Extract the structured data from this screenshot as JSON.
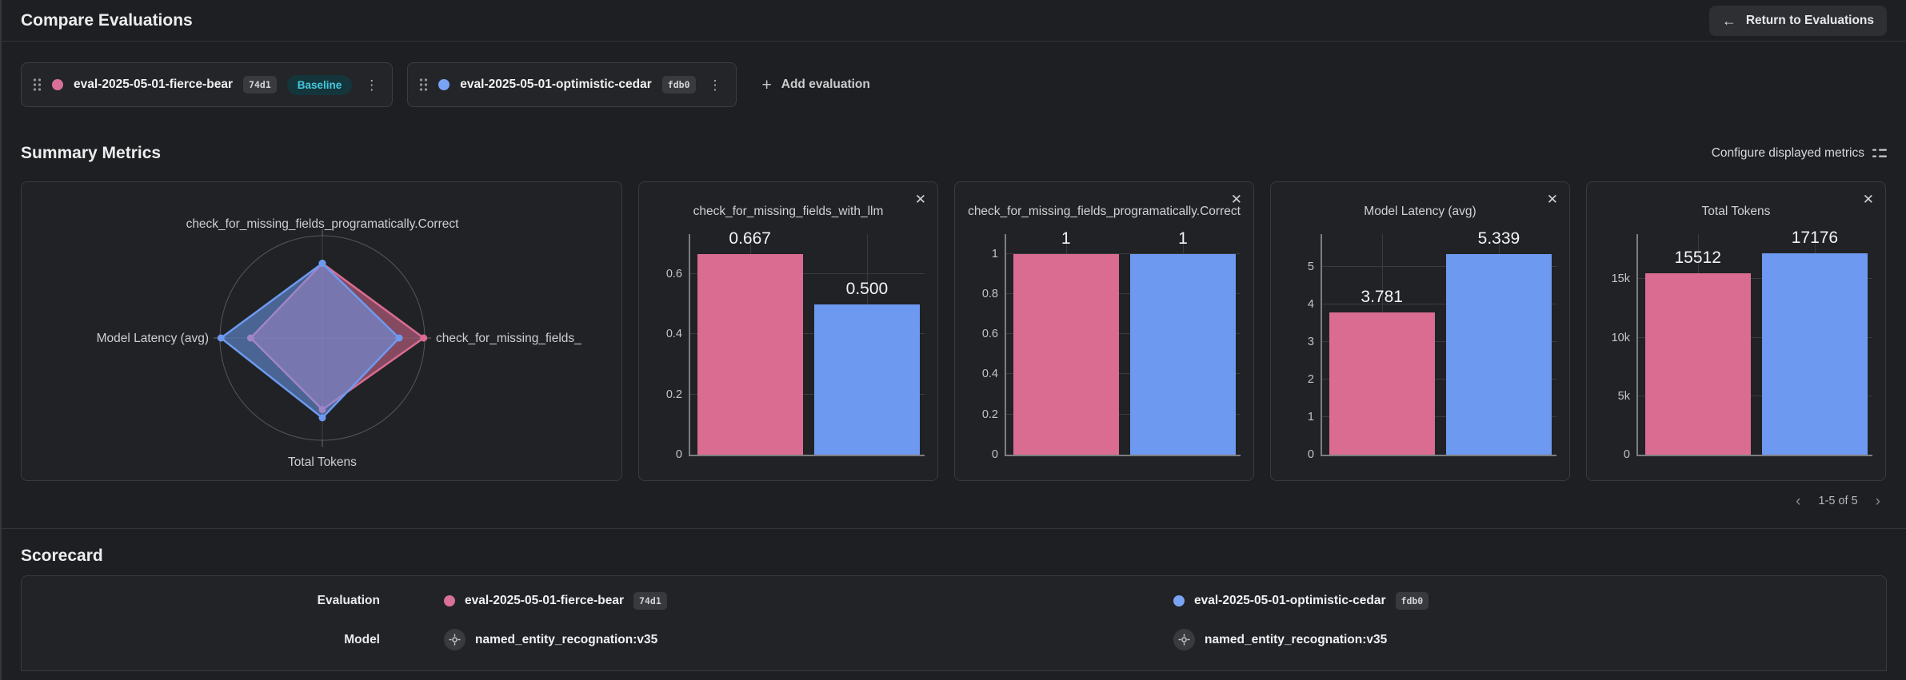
{
  "header": {
    "title": "Compare Evaluations",
    "back_arrow": "←",
    "return_button": "Return to Evaluations"
  },
  "evaluations_bar": {
    "chips": [
      {
        "name": "eval-2025-05-01-fierce-bear",
        "hash": "74d1",
        "color": "#d9709a",
        "baseline": "Baseline"
      },
      {
        "name": "eval-2025-05-01-optimistic-cedar",
        "hash": "fdb0",
        "color": "#7aa3f3"
      }
    ],
    "add_button": "Add evaluation"
  },
  "summary": {
    "title": "Summary Metrics",
    "configure_label": "Configure displayed metrics",
    "pagination": "1-5 of 5",
    "prev_chevron": "‹",
    "next_chevron": "›"
  },
  "chart_data": [
    {
      "type": "radar",
      "axes": {
        "top": "check_for_missing_fields_programatically.Correct",
        "right": "check_for_missing_fields_",
        "bottom": "Total Tokens",
        "left": "Model Latency (avg)"
      },
      "series": [
        {
          "name": "eval-2025-05-01-fierce-bear",
          "color": "#da6c92",
          "radii": {
            "top": 0.73,
            "right": 0.99,
            "bottom": 0.7,
            "left": 0.7
          }
        },
        {
          "name": "eval-2025-05-01-optimistic-cedar",
          "color": "#6d9af0",
          "radii": {
            "top": 0.73,
            "right": 0.75,
            "bottom": 0.78,
            "left": 0.99
          }
        }
      ]
    },
    {
      "type": "bar",
      "title": "check_for_missing_fields_with_llm",
      "categories": [
        "eval-2025-05-01-fierce-bear",
        "eval-2025-05-01-optimistic-cedar"
      ],
      "values": [
        0.667,
        0.5
      ],
      "value_labels": [
        "0.667",
        "0.500"
      ],
      "colors": [
        "#da6c92",
        "#6d9af0"
      ],
      "ticks": [
        [
          0,
          "0"
        ],
        [
          0.2,
          "0.2"
        ],
        [
          0.4,
          "0.4"
        ],
        [
          0.6,
          "0.6"
        ]
      ],
      "ymax": 0.733
    },
    {
      "type": "bar",
      "title": "check_for_missing_fields_programatically.Correct",
      "categories": [
        "eval-2025-05-01-fierce-bear",
        "eval-2025-05-01-optimistic-cedar"
      ],
      "values": [
        1,
        1
      ],
      "value_labels": [
        "1",
        "1"
      ],
      "colors": [
        "#da6c92",
        "#6d9af0"
      ],
      "ticks": [
        [
          0,
          "0"
        ],
        [
          0.2,
          "0.2"
        ],
        [
          0.4,
          "0.4"
        ],
        [
          0.6,
          "0.6"
        ],
        [
          0.8,
          "0.8"
        ],
        [
          1,
          "1"
        ]
      ],
      "ymax": 1.098
    },
    {
      "type": "bar",
      "title": "Model Latency (avg)",
      "categories": [
        "eval-2025-05-01-fierce-bear",
        "eval-2025-05-01-optimistic-cedar"
      ],
      "values": [
        3.781,
        5.339
      ],
      "value_labels": [
        "3.781",
        "5.339"
      ],
      "colors": [
        "#da6c92",
        "#6d9af0"
      ],
      "ticks": [
        [
          0,
          "0"
        ],
        [
          1,
          "1"
        ],
        [
          2,
          "2"
        ],
        [
          3,
          "3"
        ],
        [
          4,
          "4"
        ],
        [
          5,
          "5"
        ]
      ],
      "ymax": 5.87
    },
    {
      "type": "bar",
      "title": "Total Tokens",
      "categories": [
        "eval-2025-05-01-fierce-bear",
        "eval-2025-05-01-optimistic-cedar"
      ],
      "values": [
        15512,
        17176
      ],
      "value_labels": [
        "15512",
        "17176"
      ],
      "colors": [
        "#da6c92",
        "#6d9af0"
      ],
      "ticks": [
        [
          0,
          "0"
        ],
        [
          5000,
          "5k"
        ],
        [
          10000,
          "10k"
        ],
        [
          15000,
          "15k"
        ]
      ],
      "ymax": 18840
    }
  ],
  "scorecard": {
    "title": "Scorecard",
    "evaluation_label": "Evaluation",
    "model_label": "Model",
    "models": {
      "left": "named_entity_recognation:v35",
      "right": "named_entity_recognation:v35"
    }
  },
  "colors": {
    "pink": "#d9709a",
    "blue": "#7aa3f3",
    "pink_bar": "#da6c92",
    "blue_bar": "#6d9af0",
    "baseline_text": "#46c8dc",
    "baseline_bg": "#15353d"
  }
}
